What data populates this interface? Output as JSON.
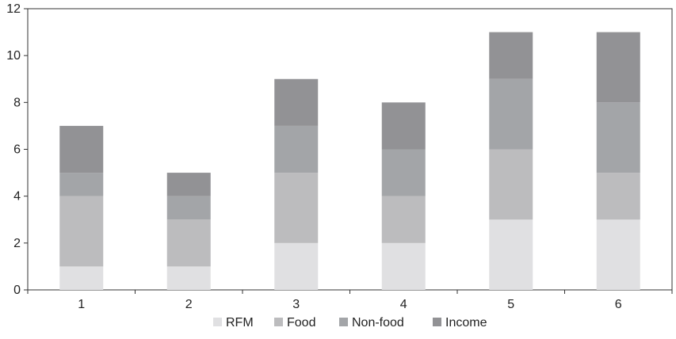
{
  "chart_data": {
    "type": "bar",
    "stacked": true,
    "categories": [
      "1",
      "2",
      "3",
      "4",
      "5",
      "6"
    ],
    "series": [
      {
        "name": "RFM",
        "values": [
          1,
          1,
          2,
          2,
          3,
          3
        ],
        "color": "#e0e0e2"
      },
      {
        "name": "Food",
        "values": [
          3,
          2,
          3,
          2,
          3,
          2
        ],
        "color": "#bcbcbe"
      },
      {
        "name": "Non-food",
        "values": [
          1,
          1,
          2,
          2,
          3,
          3
        ],
        "color": "#a3a5a8"
      },
      {
        "name": "Income",
        "values": [
          2,
          1,
          2,
          2,
          2,
          3
        ],
        "color": "#929295"
      }
    ],
    "ylim": [
      0,
      12
    ],
    "yticks": [
      0,
      2,
      4,
      6,
      8,
      10,
      12
    ],
    "grid": false,
    "legend_position": "bottom",
    "title": "",
    "xlabel": "",
    "ylabel": ""
  }
}
